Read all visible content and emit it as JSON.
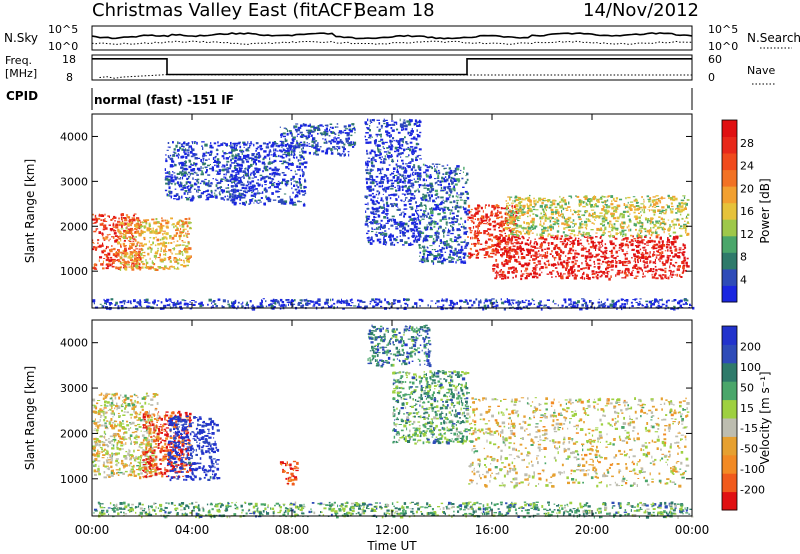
{
  "header": {
    "station": "Christmas Valley East (fitACF)",
    "beam": "Beam 18",
    "date": "14/Nov/2012"
  },
  "noise_panel": {
    "left_label": "N.Sky",
    "right_label": "N.Search",
    "ticks": [
      "10^5",
      "10^0"
    ],
    "right_ticks": [
      "10^5",
      "10^0"
    ]
  },
  "freq_panel": {
    "left_label_1": "Freq.",
    "left_label_2": "[MHz]",
    "right_label": "Nave",
    "left_ticks": [
      "18",
      "8"
    ],
    "right_ticks": [
      "60",
      "0"
    ],
    "series": [
      {
        "name": "Freq.",
        "x": [
          0,
          3.0,
          3.0,
          15.0,
          15.0,
          24
        ],
        "y": [
          16.5,
          16.5,
          10.2,
          10.2,
          16.5,
          16.5
        ],
        "ylim": [
          8,
          18
        ]
      },
      {
        "name": "Nave",
        "x": [
          0.3,
          0.6,
          0.9,
          1.2,
          3.0,
          6,
          9,
          12,
          15,
          18,
          21,
          24
        ],
        "y": [
          6,
          8,
          4,
          7,
          13,
          12,
          12,
          12,
          12,
          12,
          12,
          12
        ],
        "ylim": [
          0,
          60
        ]
      }
    ]
  },
  "cpid": {
    "label": "CPID",
    "value": "normal (fast) -151 IF"
  },
  "chart_data": [
    {
      "type": "heatmap",
      "quantity": "Power",
      "xlabel": "Time UT",
      "ylabel": "Slant Range [km]",
      "xlim": [
        0,
        24
      ],
      "ylim": [
        180,
        4500
      ],
      "x_ticks": [
        0,
        4,
        8,
        12,
        16,
        20,
        24
      ],
      "y_ticks": [
        1000,
        2000,
        3000,
        4000
      ],
      "colorbar_label": "Power [dB]",
      "colorbar_ticks": [
        4,
        8,
        12,
        16,
        20,
        24,
        28
      ],
      "colorbar_colors": [
        "#1a26e0",
        "#2e4bb8",
        "#2e7a6a",
        "#4aa66a",
        "#9ec84a",
        "#e6c23a",
        "#f2a030",
        "#f27224",
        "#f04a1c",
        "#e8281a",
        "#e01012"
      ],
      "regions": [
        {
          "x": [
            0.0,
            1.9
          ],
          "y": [
            1050,
            2300
          ],
          "level": 0.8
        },
        {
          "x": [
            1.0,
            3.9
          ],
          "y": [
            1050,
            2200
          ],
          "level": 0.55
        },
        {
          "x": [
            2.9,
            5.9
          ],
          "y": [
            2600,
            3900
          ],
          "level": 0.1
        },
        {
          "x": [
            5.5,
            8.5
          ],
          "y": [
            2500,
            3900
          ],
          "level": 0.05
        },
        {
          "x": [
            7.5,
            10.5
          ],
          "y": [
            3600,
            4300
          ],
          "level": 0.1
        },
        {
          "x": [
            10.9,
            13.1
          ],
          "y": [
            1600,
            4400
          ],
          "level": 0.05
        },
        {
          "x": [
            13.0,
            15.0
          ],
          "y": [
            1200,
            3400
          ],
          "level": 0.15
        },
        {
          "x": [
            15.0,
            17.0
          ],
          "y": [
            1300,
            2500
          ],
          "level": 0.85
        },
        {
          "x": [
            16.0,
            23.8
          ],
          "y": [
            850,
            1800
          ],
          "level": 0.95
        },
        {
          "x": [
            16.5,
            23.8
          ],
          "y": [
            1800,
            2700
          ],
          "level": 0.45
        },
        {
          "x": [
            0.0,
            24.0
          ],
          "y": [
            180,
            400
          ],
          "level": 0.05
        }
      ]
    },
    {
      "type": "heatmap",
      "quantity": "Velocity",
      "xlabel": "Time UT",
      "ylabel": "Slant Range [km]",
      "xlim": [
        0,
        24
      ],
      "ylim": [
        180,
        4500
      ],
      "x_ticks": [
        "00:00",
        "04:00",
        "08:00",
        "12:00",
        "16:00",
        "20:00",
        "00:00"
      ],
      "y_ticks": [
        1000,
        2000,
        3000,
        4000
      ],
      "colorbar_label": "Velocity [m s⁻¹]",
      "colorbar_ticks": [
        200,
        100,
        50,
        15,
        -15,
        -50,
        -100,
        -200
      ],
      "colorbar_colors": [
        "#2233cc",
        "#2e4bb8",
        "#2e7a6a",
        "#4aa66a",
        "#9ed040",
        "#bdbdb0",
        "#e6a030",
        "#f28a24",
        "#f05a1c",
        "#e01012"
      ],
      "regions": [
        {
          "x": [
            0.0,
            2.6
          ],
          "y": [
            1050,
            2900
          ],
          "level": 0.55
        },
        {
          "x": [
            2.0,
            3.9
          ],
          "y": [
            1050,
            2500
          ],
          "level": 0.9
        },
        {
          "x": [
            3.0,
            5.0
          ],
          "y": [
            1000,
            2400
          ],
          "level": 0.03
        },
        {
          "x": [
            7.5,
            8.2
          ],
          "y": [
            900,
            1400
          ],
          "level": 0.88
        },
        {
          "x": [
            11.0,
            13.5
          ],
          "y": [
            3500,
            4400
          ],
          "level": 0.25
        },
        {
          "x": [
            12.0,
            15.0
          ],
          "y": [
            1800,
            3400
          ],
          "level": 0.35
        },
        {
          "x": [
            15.0,
            23.8
          ],
          "y": [
            850,
            2800
          ],
          "level": 0.55
        },
        {
          "x": [
            0.0,
            24.0
          ],
          "y": [
            180,
            500
          ],
          "level": 0.35
        }
      ]
    }
  ]
}
